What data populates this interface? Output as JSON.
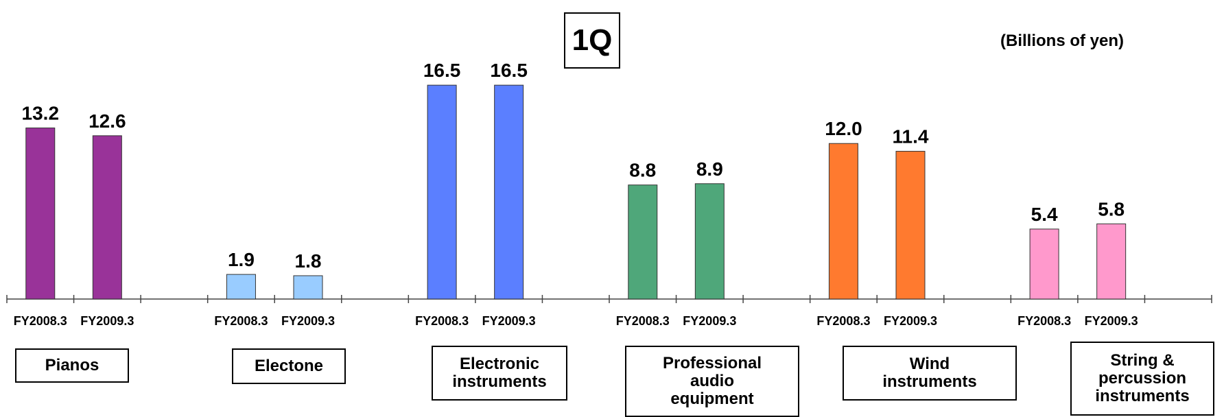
{
  "period": "1Q",
  "unit": "(Billions of yen)",
  "chart_data": {
    "type": "bar",
    "title": "1Q",
    "ylabel": "(Billions of yen)",
    "ylim": [
      0,
      20
    ],
    "groups": [
      {
        "category": "Pianos",
        "x": [
          "FY2008.3",
          "FY2009.3"
        ],
        "values": [
          13.2,
          12.6
        ],
        "labels": [
          "13.2",
          "12.6"
        ],
        "color": "#993399"
      },
      {
        "category": "Electone",
        "x": [
          "FY2008.3",
          "FY2009.3"
        ],
        "values": [
          1.9,
          1.8
        ],
        "labels": [
          "1.9",
          "1.8"
        ],
        "color": "#99CCFF"
      },
      {
        "category": "Electronic\ninstruments",
        "x": [
          "FY2008.3",
          "FY2009.3"
        ],
        "values": [
          16.5,
          16.5
        ],
        "labels": [
          "16.5",
          "16.5"
        ],
        "color": "#5B7FFF"
      },
      {
        "category": "Professional\naudio\nequipment",
        "x": [
          "FY2008.3",
          "FY2009.3"
        ],
        "values": [
          8.8,
          8.9
        ],
        "labels": [
          "8.8",
          "8.9"
        ],
        "color": "#4FA77A"
      },
      {
        "category": "Wind\ninstruments",
        "x": [
          "FY2008.3",
          "FY2009.3"
        ],
        "values": [
          12.0,
          11.4
        ],
        "labels": [
          "12.0",
          "11.4"
        ],
        "color": "#FF7A2F"
      },
      {
        "category": "String &\npercussion\ninstruments",
        "x": [
          "FY2008.3",
          "FY2009.3"
        ],
        "values": [
          5.4,
          5.8
        ],
        "labels": [
          "5.4",
          "5.8"
        ],
        "color": "#FF99CC"
      }
    ],
    "grid": false,
    "legend": "none"
  }
}
